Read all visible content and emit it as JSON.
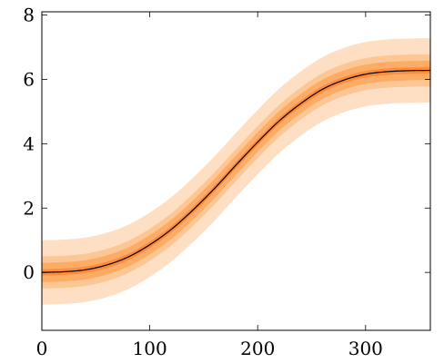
{
  "chart_data": {
    "type": "line",
    "title": "",
    "xlabel": "",
    "ylabel": "",
    "xlim": [
      0,
      360
    ],
    "ylim": [
      -1.8,
      8.1
    ],
    "xticks": [
      0,
      100,
      200,
      300
    ],
    "yticks": [
      0,
      2,
      4,
      6,
      8
    ],
    "xtick_labels": [
      "0",
      "100",
      "200",
      "300"
    ],
    "ytick_labels": [
      "0",
      "2",
      "4",
      "6",
      "8"
    ],
    "grid": false,
    "legend": "none",
    "series": [
      {
        "x": [
          0,
          20,
          40,
          60,
          80,
          100,
          120,
          140,
          160,
          180,
          200,
          220,
          240,
          260,
          280,
          300,
          320,
          340,
          360
        ],
        "y": [
          0.0,
          0.02,
          0.08,
          0.23,
          0.48,
          0.86,
          1.34,
          1.94,
          2.61,
          3.34,
          4.05,
          4.71,
          5.25,
          5.69,
          5.98,
          6.16,
          6.24,
          6.27,
          6.28
        ],
        "color": "#000000"
      }
    ],
    "bands": [
      {
        "half_width": 1.0,
        "color": "#fedfc4"
      },
      {
        "half_width": 0.5,
        "color": "#fdc695"
      },
      {
        "half_width": 0.3,
        "color": "#fdac66"
      },
      {
        "half_width": 0.1,
        "color": "#fd8d3c"
      }
    ],
    "colors": {
      "line": "#000000",
      "axis": "#000000"
    }
  }
}
